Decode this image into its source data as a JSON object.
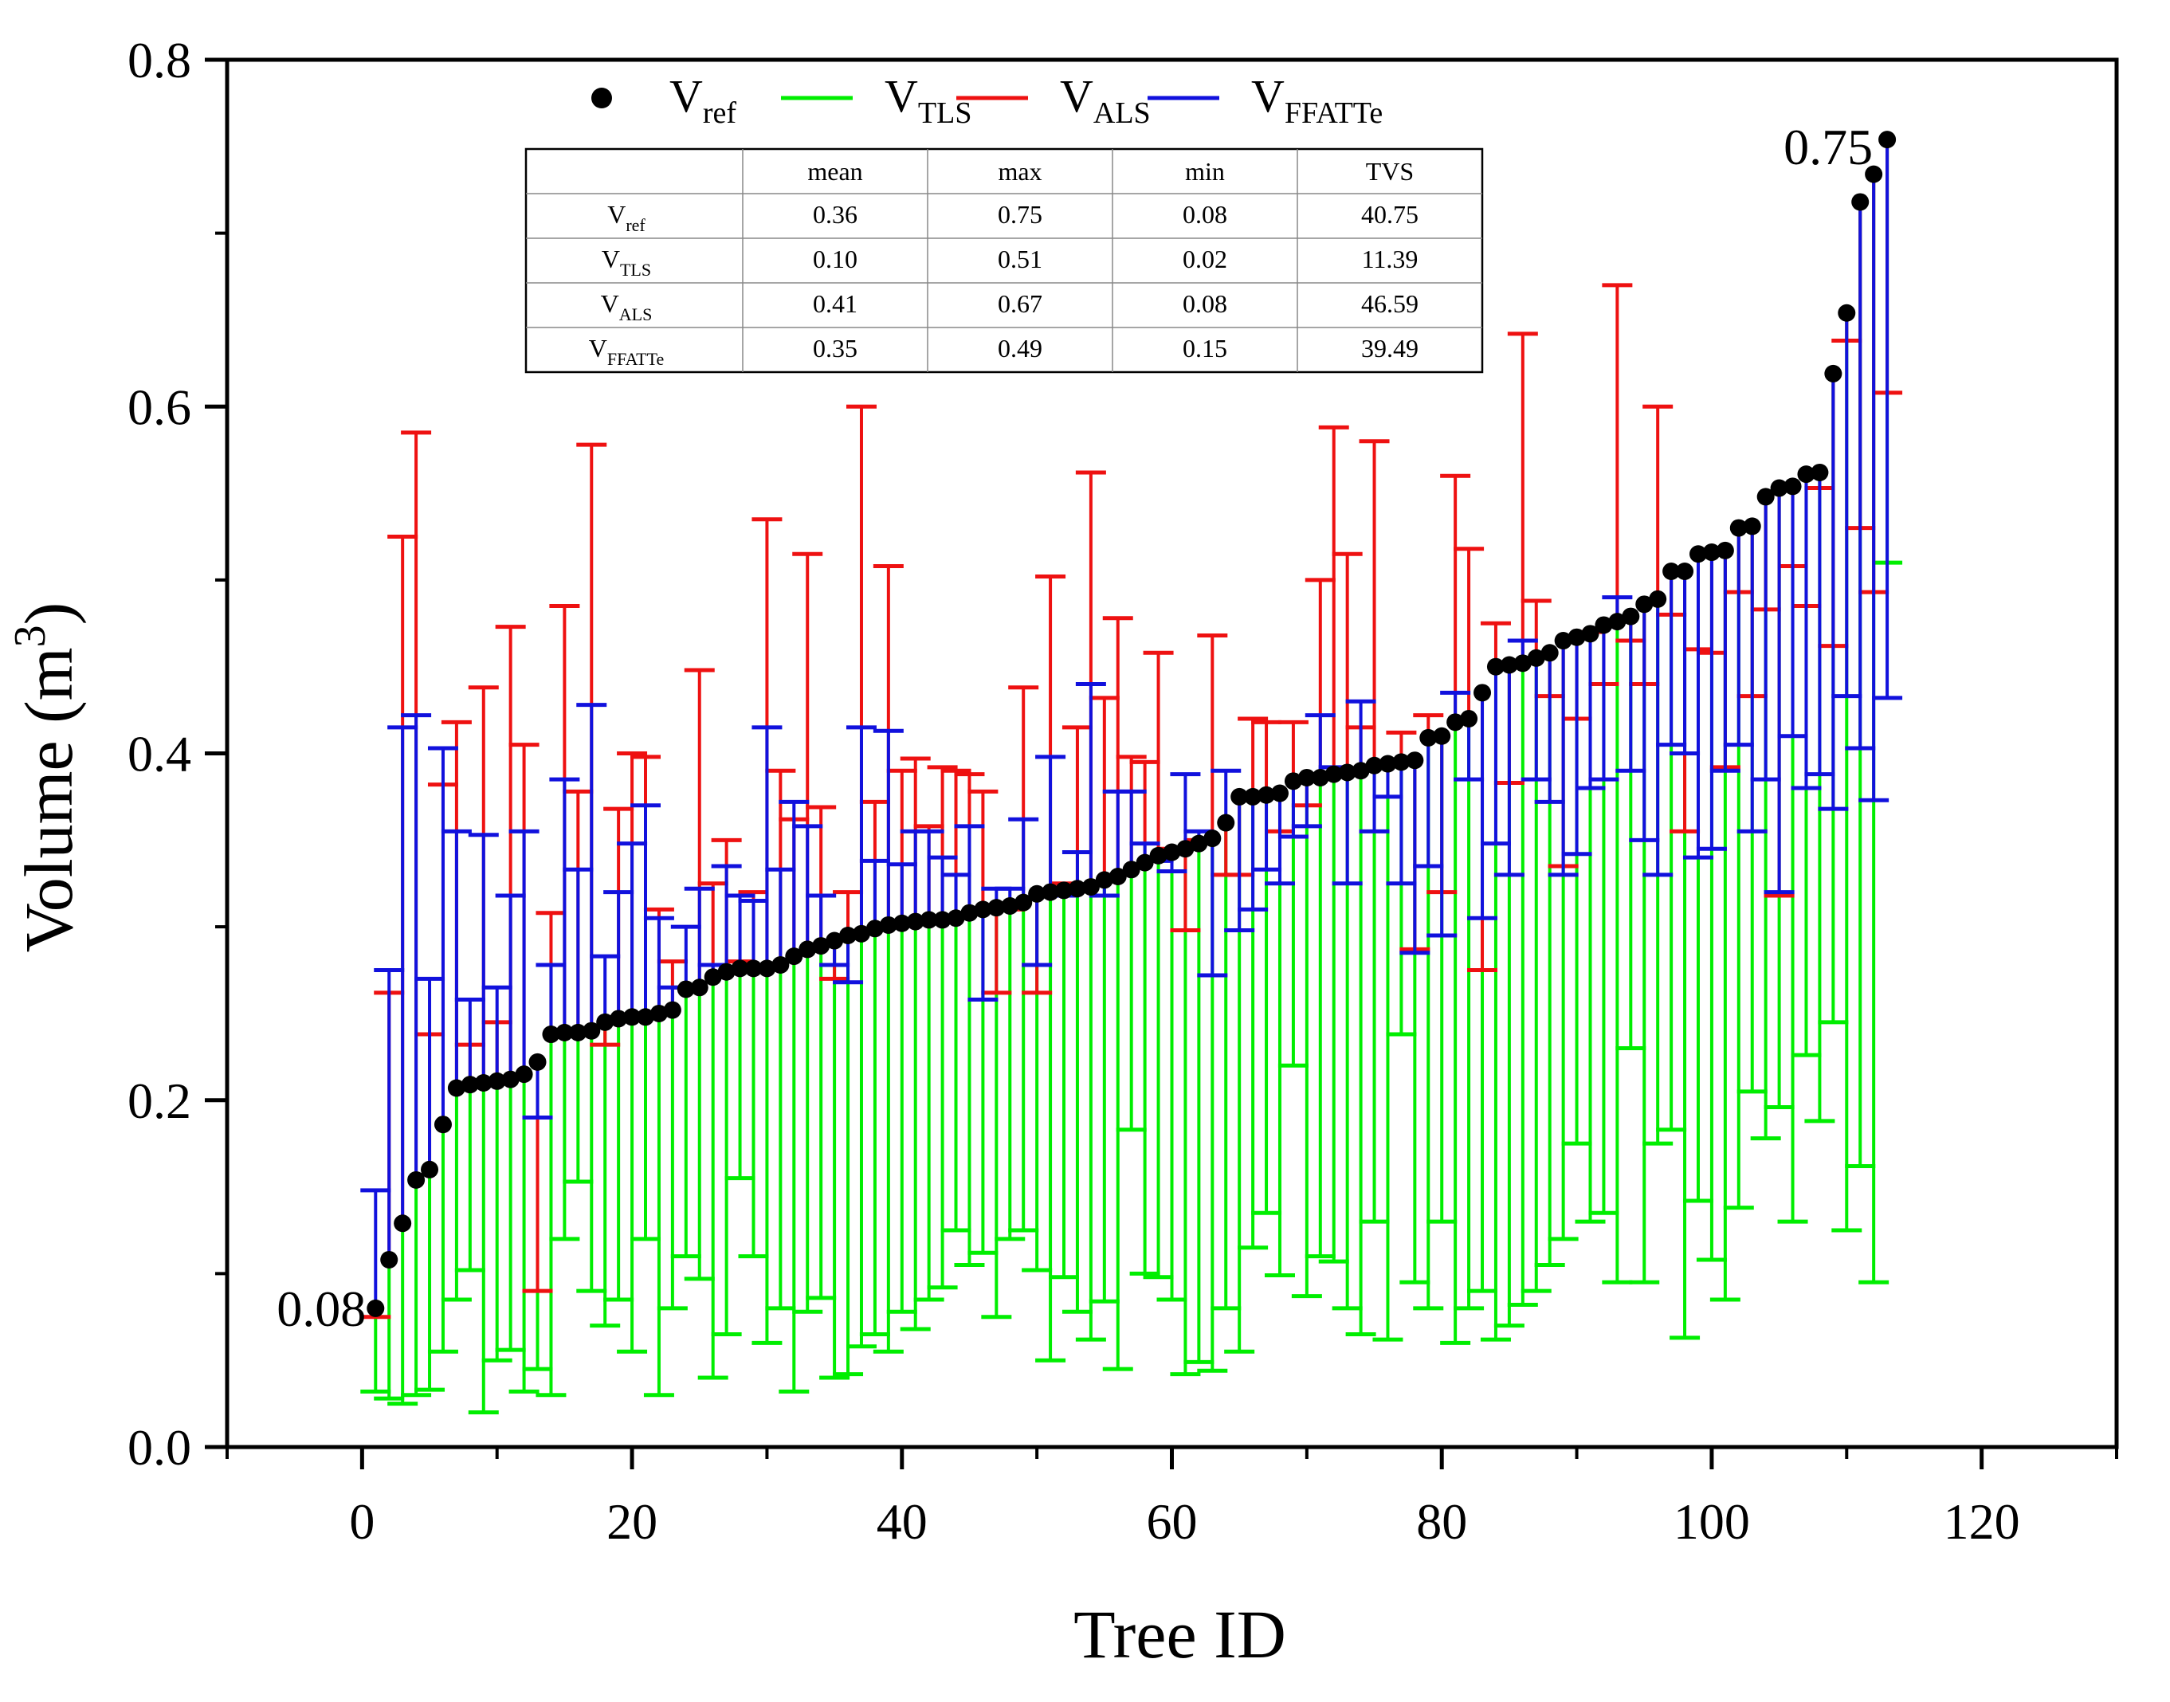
{
  "chart_data": {
    "type": "scatter",
    "title": "",
    "xlabel": "Tree ID",
    "ylabel_main": "Volume (m",
    "ylabel_sup": "3",
    "ylabel_close": ")",
    "xlim": [
      -10,
      130
    ],
    "ylim": [
      0,
      0.8
    ],
    "xticks": [
      0,
      20,
      40,
      60,
      80,
      100,
      120
    ],
    "xtick_labels": [
      "0",
      "20",
      "40",
      "60",
      "80",
      "100",
      "120"
    ],
    "yticks": [
      0,
      0.2,
      0.4,
      0.6,
      0.8
    ],
    "ytick_labels": [
      "0.0",
      "0.2",
      "0.4",
      "0.6",
      "0.8"
    ],
    "legend": {
      "position": "top",
      "entries": [
        {
          "base": "V",
          "sub": "ref",
          "marker": "circle",
          "color": "#000000"
        },
        {
          "base": "V",
          "sub": "TLS",
          "marker": "line",
          "color": "#00ee00"
        },
        {
          "base": "V",
          "sub": "ALS",
          "marker": "line",
          "color": "#ee1111"
        },
        {
          "base": "V",
          "sub": "FFATTe",
          "marker": "line",
          "color": "#1111dd"
        }
      ]
    },
    "annotations": [
      {
        "text": "0.08",
        "x": 1,
        "y": 0.08
      },
      {
        "text": "0.75",
        "x": 113,
        "y": 0.75
      }
    ],
    "colors": {
      "ref": "#000000",
      "tls": "#00ee00",
      "als": "#ee1111",
      "ffatte": "#1111dd"
    },
    "series": [
      {
        "name": "V_ref",
        "x": [
          1,
          2,
          3,
          4,
          5,
          6,
          7,
          8,
          9,
          10,
          11,
          12,
          13,
          14,
          15,
          16,
          17,
          18,
          19,
          20,
          21,
          22,
          23,
          24,
          25,
          26,
          27,
          28,
          29,
          30,
          31,
          32,
          33,
          34,
          35,
          36,
          37,
          38,
          39,
          40,
          41,
          42,
          43,
          44,
          45,
          46,
          47,
          48,
          49,
          50,
          51,
          52,
          53,
          54,
          55,
          56,
          57,
          58,
          59,
          60,
          61,
          62,
          63,
          64,
          65,
          66,
          67,
          68,
          69,
          70,
          71,
          72,
          73,
          74,
          75,
          76,
          77,
          78,
          79,
          80,
          81,
          82,
          83,
          84,
          85,
          86,
          87,
          88,
          89,
          90,
          91,
          92,
          93,
          94,
          95,
          96,
          97,
          98,
          99,
          100,
          101,
          102,
          103,
          104,
          105,
          106,
          107,
          108,
          109,
          110,
          111,
          112,
          113
        ],
        "values": [
          0.08,
          0.108,
          0.129,
          0.154,
          0.16,
          0.186,
          0.207,
          0.209,
          0.21,
          0.211,
          0.212,
          0.215,
          0.222,
          0.238,
          0.239,
          0.239,
          0.24,
          0.245,
          0.247,
          0.248,
          0.248,
          0.25,
          0.252,
          0.264,
          0.265,
          0.271,
          0.274,
          0.276,
          0.276,
          0.276,
          0.278,
          0.283,
          0.287,
          0.289,
          0.292,
          0.295,
          0.296,
          0.299,
          0.301,
          0.302,
          0.303,
          0.304,
          0.304,
          0.305,
          0.308,
          0.31,
          0.311,
          0.312,
          0.314,
          0.319,
          0.32,
          0.321,
          0.322,
          0.323,
          0.327,
          0.329,
          0.333,
          0.337,
          0.341,
          0.343,
          0.345,
          0.348,
          0.351,
          0.36,
          0.375,
          0.375,
          0.376,
          0.377,
          0.384,
          0.386,
          0.386,
          0.388,
          0.389,
          0.39,
          0.393,
          0.394,
          0.395,
          0.396,
          0.409,
          0.41,
          0.418,
          0.42,
          0.435,
          0.45,
          0.451,
          0.452,
          0.455,
          0.458,
          0.465,
          0.467,
          0.469,
          0.474,
          0.476,
          0.479,
          0.486,
          0.489,
          0.505,
          0.505,
          0.515,
          0.516,
          0.517,
          0.53,
          0.531,
          0.548,
          0.553,
          0.554,
          0.561,
          0.562,
          0.619,
          0.654,
          0.718,
          0.734,
          0.754
        ]
      },
      {
        "name": "V_TLS",
        "values": [
          0.032,
          0.028,
          0.025,
          0.03,
          0.033,
          0.055,
          0.085,
          0.102,
          0.02,
          0.05,
          0.056,
          0.032,
          0.045,
          0.03,
          0.12,
          0.153,
          0.09,
          0.07,
          0.085,
          0.055,
          0.12,
          0.03,
          0.08,
          0.11,
          0.097,
          0.04,
          0.065,
          0.155,
          0.11,
          0.06,
          0.08,
          0.032,
          0.078,
          0.086,
          0.04,
          0.042,
          0.058,
          0.065,
          0.055,
          0.078,
          0.068,
          0.085,
          0.092,
          0.125,
          0.105,
          0.112,
          0.075,
          0.12,
          0.125,
          0.102,
          0.05,
          0.098,
          0.078,
          0.062,
          0.084,
          0.045,
          0.183,
          0.1,
          0.098,
          0.085,
          0.042,
          0.049,
          0.044,
          0.08,
          0.055,
          0.115,
          0.135,
          0.099,
          0.22,
          0.087,
          0.11,
          0.107,
          0.08,
          0.065,
          0.13,
          0.062,
          0.238,
          0.095,
          0.08,
          0.13,
          0.06,
          0.08,
          0.09,
          0.062,
          0.07,
          0.082,
          0.09,
          0.105,
          0.12,
          0.175,
          0.13,
          0.135,
          0.095,
          0.23,
          0.095,
          0.175,
          0.183,
          0.063,
          0.142,
          0.108,
          0.085,
          0.138,
          0.205,
          0.178,
          0.196,
          0.13,
          0.226,
          0.188,
          0.245,
          0.125,
          0.162,
          0.095,
          0.51
        ]
      },
      {
        "name": "V_ALS",
        "values": [
          0.075,
          0.262,
          0.525,
          0.585,
          0.238,
          0.382,
          0.418,
          0.232,
          0.438,
          0.245,
          0.473,
          0.405,
          0.09,
          0.308,
          0.485,
          0.378,
          0.578,
          0.232,
          0.368,
          0.4,
          0.398,
          0.31,
          0.28,
          0.265,
          0.448,
          0.325,
          0.35,
          0.28,
          0.32,
          0.535,
          0.39,
          0.362,
          0.515,
          0.369,
          0.27,
          0.32,
          0.6,
          0.372,
          0.508,
          0.39,
          0.397,
          0.358,
          0.392,
          0.39,
          0.388,
          0.378,
          0.262,
          0.31,
          0.438,
          0.262,
          0.502,
          0.325,
          0.415,
          0.562,
          0.432,
          0.478,
          0.398,
          0.395,
          0.458,
          0.345,
          0.298,
          0.35,
          0.468,
          0.33,
          0.33,
          0.42,
          0.418,
          0.355,
          0.418,
          0.37,
          0.5,
          0.588,
          0.515,
          0.415,
          0.58,
          0.395,
          0.412,
          0.287,
          0.422,
          0.32,
          0.56,
          0.518,
          0.275,
          0.475,
          0.383,
          0.642,
          0.488,
          0.433,
          0.335,
          0.42,
          0.47,
          0.44,
          0.67,
          0.465,
          0.44,
          0.6,
          0.48,
          0.355,
          0.46,
          0.458,
          0.392,
          0.493,
          0.433,
          0.483,
          0.318,
          0.508,
          0.485,
          0.553,
          0.462,
          0.638,
          0.53,
          0.493,
          0.608
        ]
      },
      {
        "name": "V_FFATTe",
        "values": [
          0.148,
          0.275,
          0.415,
          0.422,
          0.27,
          0.403,
          0.355,
          0.258,
          0.353,
          0.265,
          0.318,
          0.355,
          0.19,
          0.278,
          0.385,
          0.333,
          0.428,
          0.283,
          0.32,
          0.348,
          0.37,
          0.305,
          0.265,
          0.3,
          0.322,
          0.278,
          0.335,
          0.318,
          0.315,
          0.415,
          0.333,
          0.372,
          0.358,
          0.318,
          0.278,
          0.268,
          0.415,
          0.338,
          0.413,
          0.336,
          0.355,
          0.355,
          0.34,
          0.33,
          0.358,
          0.258,
          0.322,
          0.322,
          0.362,
          0.278,
          0.398,
          0.318,
          0.343,
          0.44,
          0.318,
          0.378,
          0.378,
          0.348,
          0.338,
          0.332,
          0.388,
          0.355,
          0.272,
          0.39,
          0.298,
          0.31,
          0.333,
          0.325,
          0.352,
          0.358,
          0.422,
          0.392,
          0.325,
          0.43,
          0.355,
          0.375,
          0.325,
          0.285,
          0.335,
          0.295,
          0.435,
          0.385,
          0.305,
          0.348,
          0.33,
          0.465,
          0.385,
          0.372,
          0.33,
          0.342,
          0.38,
          0.385,
          0.49,
          0.39,
          0.35,
          0.33,
          0.405,
          0.4,
          0.34,
          0.345,
          0.39,
          0.405,
          0.355,
          0.385,
          0.32,
          0.41,
          0.38,
          0.388,
          0.368,
          0.433,
          0.403,
          0.373,
          0.432
        ]
      }
    ],
    "stats_table": {
      "headers": [
        "",
        "mean",
        "max",
        "min",
        "TVS"
      ],
      "rows": [
        {
          "base": "V",
          "sub": "ref",
          "cells": [
            "0.36",
            "0.75",
            "0.08",
            "40.75"
          ]
        },
        {
          "base": "V",
          "sub": "TLS",
          "cells": [
            "0.10",
            "0.51",
            "0.02",
            "11.39"
          ]
        },
        {
          "base": "V",
          "sub": "ALS",
          "cells": [
            "0.41",
            "0.67",
            "0.08",
            "46.59"
          ]
        },
        {
          "base": "V",
          "sub": "FFATTe",
          "cells": [
            "0.35",
            "0.49",
            "0.15",
            "39.49"
          ]
        }
      ]
    }
  }
}
